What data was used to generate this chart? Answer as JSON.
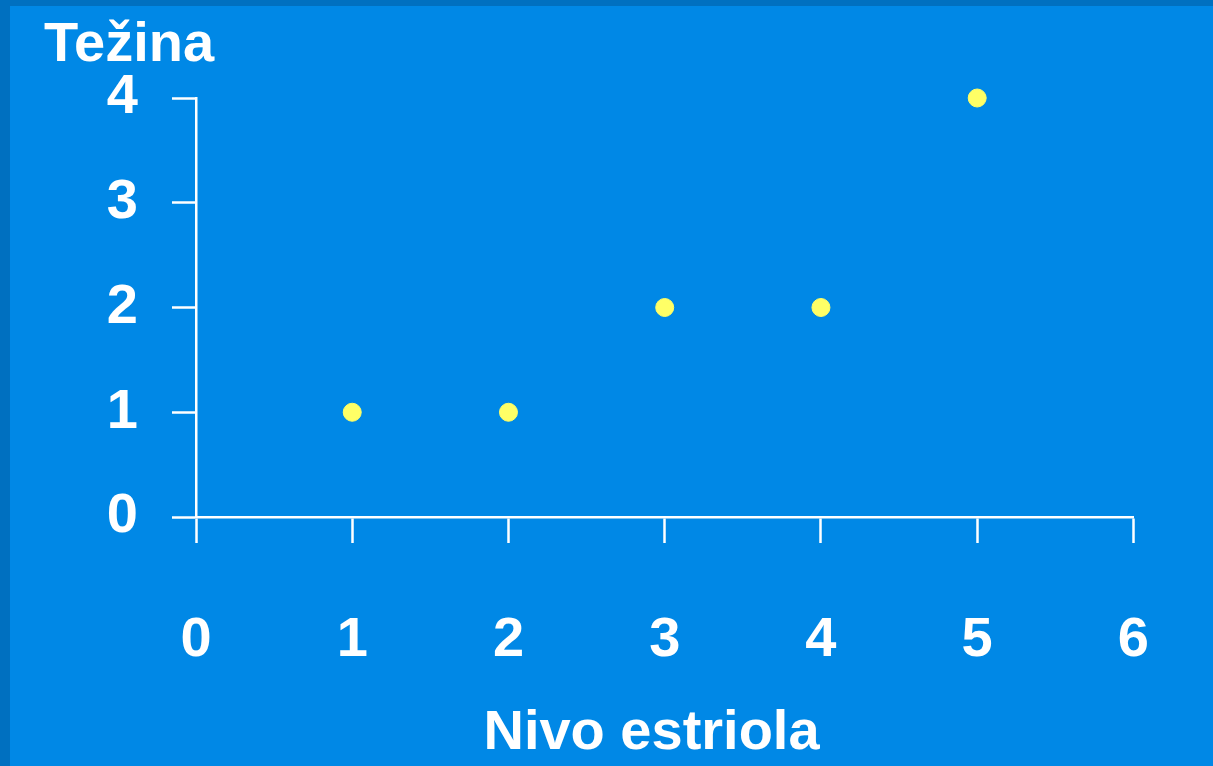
{
  "chart_data": {
    "type": "scatter",
    "xlabel": "Nivo estriola",
    "ylabel": "Težina",
    "x": [
      1,
      2,
      3,
      4,
      5
    ],
    "series": [
      {
        "color": "#ffff66",
        "values": [
          1,
          1,
          2,
          2,
          4
        ]
      }
    ],
    "xlim": [
      0,
      6
    ],
    "xticks": [
      0,
      1,
      2,
      3,
      4,
      5,
      6
    ],
    "ylim": [
      0,
      4
    ],
    "yticks": [
      0,
      1,
      2,
      3,
      4
    ],
    "marker": "circle"
  }
}
